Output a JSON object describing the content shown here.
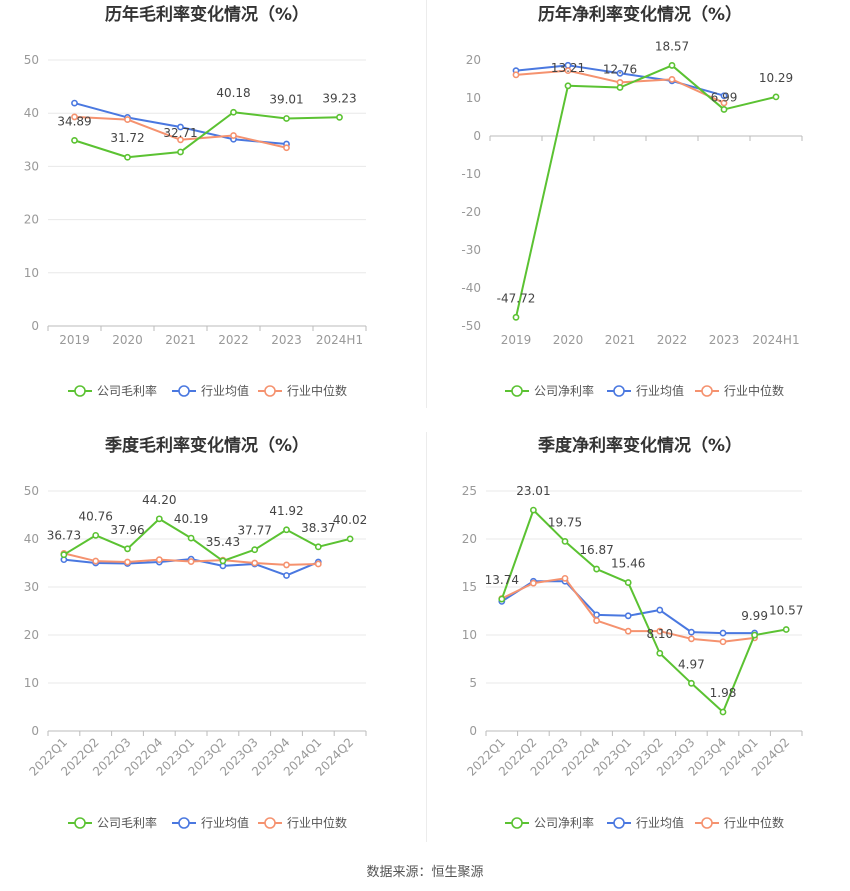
{
  "source": "数据来源：恒生聚源",
  "colors": {
    "company": "#5bc232",
    "industry_avg": "#4a78e0",
    "industry_median": "#f5926f"
  },
  "chart_data": [
    {
      "type": "line",
      "title": "历年毛利率变化情况（%）",
      "categories": [
        "2019",
        "2020",
        "2021",
        "2022",
        "2023",
        "2024H1"
      ],
      "ylim": [
        0,
        50
      ],
      "yticks": [
        0,
        10,
        20,
        30,
        40,
        50
      ],
      "grid": true,
      "legend": "bottom",
      "series": [
        {
          "name": "公司毛利率",
          "key": "company",
          "labeled": true,
          "values": [
            34.89,
            31.72,
            32.71,
            40.18,
            39.01,
            39.23
          ]
        },
        {
          "name": "行业均值",
          "key": "industry_avg",
          "values": [
            41.9,
            39.2,
            37.4,
            35.1,
            34.2,
            null
          ]
        },
        {
          "name": "行业中位数",
          "key": "industry_median",
          "values": [
            39.3,
            38.8,
            35.0,
            35.8,
            33.5,
            null
          ]
        }
      ],
      "data_labels": [
        "34.89",
        "31.72",
        "32.71",
        "40.18",
        "39.01",
        "39.23"
      ]
    },
    {
      "type": "line",
      "title": "历年净利率变化情况（%）",
      "categories": [
        "2019",
        "2020",
        "2021",
        "2022",
        "2023",
        "2024H1"
      ],
      "ylim": [
        -50,
        20
      ],
      "yticks": [
        -50,
        -40,
        -30,
        -20,
        -10,
        0,
        10,
        20
      ],
      "grid": false,
      "legend": "bottom",
      "series": [
        {
          "name": "公司净利率",
          "key": "company",
          "labeled": true,
          "values": [
            -47.72,
            13.21,
            12.76,
            18.57,
            6.99,
            10.29
          ]
        },
        {
          "name": "行业均值",
          "key": "industry_avg",
          "values": [
            17.2,
            18.6,
            16.5,
            14.5,
            10.6,
            null
          ]
        },
        {
          "name": "行业中位数",
          "key": "industry_median",
          "values": [
            16.1,
            17.2,
            14.1,
            14.9,
            8.7,
            null
          ]
        }
      ],
      "data_labels": [
        "-47.72",
        "13.21",
        "12.76",
        "18.57",
        "6.99",
        "10.29"
      ]
    },
    {
      "type": "line",
      "title": "季度毛利率变化情况（%）",
      "categories": [
        "2022Q1",
        "2022Q2",
        "2022Q3",
        "2022Q4",
        "2023Q1",
        "2023Q2",
        "2023Q3",
        "2023Q4",
        "2024Q1",
        "2024Q2"
      ],
      "ylim": [
        0,
        50
      ],
      "yticks": [
        0,
        10,
        20,
        30,
        40,
        50
      ],
      "grid": true,
      "legend": "bottom",
      "series": [
        {
          "name": "公司毛利率",
          "key": "company",
          "labeled": true,
          "values": [
            36.73,
            40.76,
            37.96,
            44.2,
            40.19,
            35.43,
            37.77,
            41.92,
            38.37,
            40.02
          ]
        },
        {
          "name": "行业均值",
          "key": "industry_avg",
          "values": [
            35.7,
            35.0,
            34.9,
            35.2,
            35.8,
            34.4,
            34.8,
            32.4,
            35.2,
            null
          ]
        },
        {
          "name": "行业中位数",
          "key": "industry_median",
          "values": [
            37.0,
            35.4,
            35.2,
            35.7,
            35.3,
            35.6,
            35.0,
            34.6,
            34.8,
            null
          ]
        }
      ],
      "data_labels": [
        "36.73",
        "40.76",
        "37.96",
        "44.20",
        "40.19",
        "35.43",
        "37.77",
        "41.92",
        "38.37",
        "40.02"
      ]
    },
    {
      "type": "line",
      "title": "季度净利率变化情况（%）",
      "categories": [
        "2022Q1",
        "2022Q2",
        "2022Q3",
        "2022Q4",
        "2023Q1",
        "2023Q2",
        "2023Q3",
        "2023Q4",
        "2024Q1",
        "2024Q2"
      ],
      "ylim": [
        0,
        25
      ],
      "yticks": [
        0,
        5,
        10,
        15,
        20,
        25
      ],
      "grid": true,
      "legend": "bottom",
      "series": [
        {
          "name": "公司净利率",
          "key": "company",
          "labeled": true,
          "values": [
            13.74,
            23.01,
            19.75,
            16.87,
            15.46,
            8.1,
            4.97,
            1.98,
            9.99,
            10.57
          ]
        },
        {
          "name": "行业均值",
          "key": "industry_avg",
          "values": [
            13.5,
            15.6,
            15.6,
            12.1,
            12.0,
            12.6,
            10.3,
            10.2,
            10.2,
            null
          ]
        },
        {
          "name": "行业中位数",
          "key": "industry_median",
          "values": [
            13.8,
            15.4,
            15.9,
            11.5,
            10.4,
            10.4,
            9.6,
            9.3,
            9.7,
            null
          ]
        }
      ],
      "data_labels": [
        "13.74",
        "23.01",
        "19.75",
        "16.87",
        "15.46",
        "8.10",
        "4.97",
        "1.98",
        "9.99",
        "10.57"
      ]
    }
  ]
}
